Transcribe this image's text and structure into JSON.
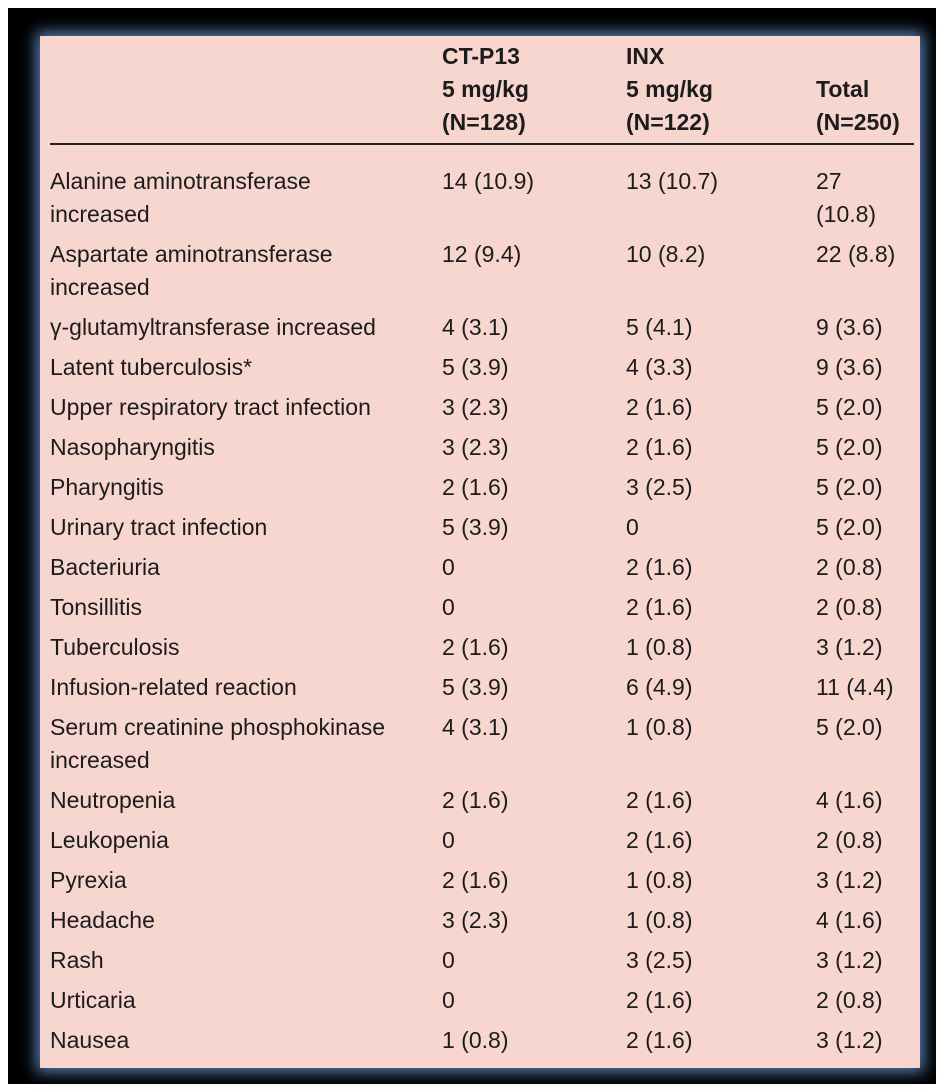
{
  "header": {
    "col1": "",
    "col2": [
      "CT-P13",
      "5 mg/kg",
      "(N=128)"
    ],
    "col3": [
      "INX",
      "5 mg/kg",
      "(N=122)"
    ],
    "col4": [
      "Total",
      "(N=250)"
    ]
  },
  "rows": [
    {
      "event": [
        "Alanine aminotransferase",
        "increased"
      ],
      "ctp13": "14 (10.9)",
      "inx": "13 (10.7)",
      "total": [
        "27",
        "(10.8)"
      ]
    },
    {
      "event": [
        "Aspartate aminotransferase",
        "increased"
      ],
      "ctp13": "12 (9.4)",
      "inx": "10 (8.2)",
      "total": [
        "22 (8.8)"
      ]
    },
    {
      "event": [
        "γ-glutamyltransferase increased"
      ],
      "ctp13": "4 (3.1)",
      "inx": "5 (4.1)",
      "total": [
        "9 (3.6)"
      ]
    },
    {
      "event": [
        "Latent tuberculosis*"
      ],
      "ctp13": "5 (3.9)",
      "inx": "4 (3.3)",
      "total": [
        "9 (3.6)"
      ]
    },
    {
      "event": [
        "Upper respiratory tract infection"
      ],
      "ctp13": "3 (2.3)",
      "inx": "2 (1.6)",
      "total": [
        "5 (2.0)"
      ]
    },
    {
      "event": [
        "Nasopharyngitis"
      ],
      "ctp13": "3 (2.3)",
      "inx": "2 (1.6)",
      "total": [
        "5 (2.0)"
      ]
    },
    {
      "event": [
        "Pharyngitis"
      ],
      "ctp13": "2 (1.6)",
      "inx": "3 (2.5)",
      "total": [
        "5 (2.0)"
      ]
    },
    {
      "event": [
        "Urinary tract infection"
      ],
      "ctp13": "5 (3.9)",
      "inx": "0",
      "total": [
        "5 (2.0)"
      ]
    },
    {
      "event": [
        "Bacteriuria"
      ],
      "ctp13": "0",
      "inx": "2 (1.6)",
      "total": [
        "2 (0.8)"
      ]
    },
    {
      "event": [
        "Tonsillitis"
      ],
      "ctp13": "0",
      "inx": "2 (1.6)",
      "total": [
        "2 (0.8)"
      ]
    },
    {
      "event": [
        "Tuberculosis"
      ],
      "ctp13": "2 (1.6)",
      "inx": "1 (0.8)",
      "total": [
        "3 (1.2)"
      ]
    },
    {
      "event": [
        "Infusion-related reaction"
      ],
      "ctp13": "5 (3.9)",
      "inx": "6 (4.9)",
      "total": [
        "11 (4.4)"
      ]
    },
    {
      "event": [
        "Serum creatinine phosphokinase",
        "increased"
      ],
      "ctp13": "4 (3.1)",
      "inx": "1 (0.8)",
      "total": [
        "5 (2.0)"
      ]
    },
    {
      "event": [
        "Neutropenia"
      ],
      "ctp13": "2 (1.6)",
      "inx": "2 (1.6)",
      "total": [
        "4 (1.6)"
      ]
    },
    {
      "event": [
        "Leukopenia"
      ],
      "ctp13": "0",
      "inx": "2 (1.6)",
      "total": [
        "2 (0.8)"
      ]
    },
    {
      "event": [
        "Pyrexia"
      ],
      "ctp13": "2 (1.6)",
      "inx": "1 (0.8)",
      "total": [
        "3 (1.2)"
      ]
    },
    {
      "event": [
        "Headache"
      ],
      "ctp13": "3 (2.3)",
      "inx": "1 (0.8)",
      "total": [
        "4 (1.6)"
      ]
    },
    {
      "event": [
        "Rash"
      ],
      "ctp13": "0",
      "inx": "3 (2.5)",
      "total": [
        "3 (1.2)"
      ]
    },
    {
      "event": [
        "Urticaria"
      ],
      "ctp13": "0",
      "inx": "2 (1.6)",
      "total": [
        "2 (0.8)"
      ]
    },
    {
      "event": [
        "Nausea"
      ],
      "ctp13": "1 (0.8)",
      "inx": "2 (1.6)",
      "total": [
        "3 (1.2)"
      ]
    }
  ],
  "colors": {
    "panel_background": "#f8d6d0",
    "frame": "#000000",
    "glow": "#5a7fb8",
    "text": "#1c1c1c"
  }
}
